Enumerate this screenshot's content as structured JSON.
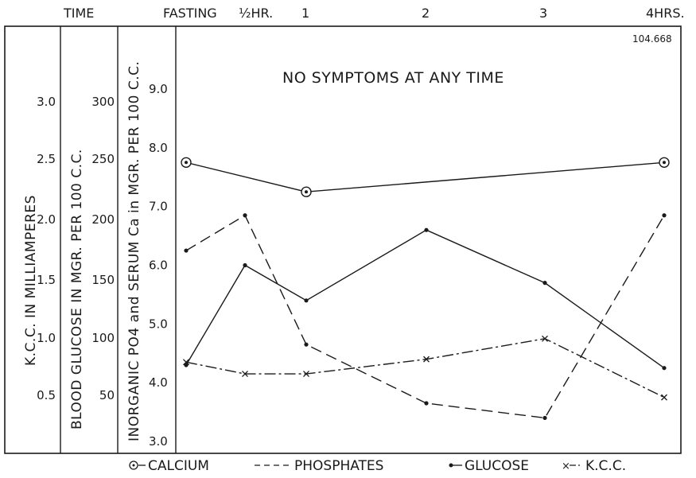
{
  "chart_data": {
    "type": "line",
    "title": "NO SYMPTOMS AT ANY TIME",
    "chart_id": "104.668",
    "x_header": "TIME",
    "x_ticks": [
      "FASTING",
      "½HR.",
      "1",
      "2",
      "3",
      "4HRS."
    ],
    "x_values": [
      0,
      0.5,
      1,
      2,
      3,
      4
    ],
    "axes": [
      {
        "label": "K.C.C. IN MILLIAMPERES",
        "ticks": [
          "0.5",
          "1.0",
          "1.5",
          "2.0",
          "2.5",
          "3.0"
        ],
        "range": [
          0.5,
          3.0
        ]
      },
      {
        "label": "BLOOD GLUCOSE IN MGR. PER 100 C.C.",
        "ticks": [
          "50",
          "100",
          "150",
          "200",
          "250",
          "300"
        ],
        "range": [
          50,
          300
        ]
      },
      {
        "label": "INORGANIC PO4 and SERUM Ca in MGR. PER 100 C.C.",
        "ticks": [
          "3.0",
          "4.0",
          "5.0",
          "6.0",
          "7.0",
          "8.0",
          "9.0"
        ],
        "range": [
          3.0,
          9.0
        ]
      }
    ],
    "legend_position": "bottom",
    "series": [
      {
        "name": "CALCIUM",
        "marker": "circle-dot",
        "style": "solid",
        "x": [
          0,
          1,
          4
        ],
        "y": [
          7.75,
          7.25,
          7.75
        ]
      },
      {
        "name": "PHOSPHATES",
        "marker": "dot",
        "style": "dashed",
        "x": [
          0,
          0.5,
          1,
          2,
          3,
          4
        ],
        "y": [
          6.25,
          6.85,
          4.65,
          3.65,
          3.4,
          6.85
        ]
      },
      {
        "name": "GLUCOSE",
        "marker": "dot",
        "style": "solid",
        "x": [
          0,
          0.5,
          1,
          2,
          3,
          4
        ],
        "y": [
          4.3,
          6.0,
          5.4,
          6.6,
          5.7,
          4.25
        ]
      },
      {
        "name": "K.C.C.",
        "marker": "x",
        "style": "dash-dot",
        "x": [
          0,
          0.5,
          1,
          2,
          3,
          4
        ],
        "y": [
          4.35,
          4.15,
          4.15,
          4.4,
          4.75,
          3.75
        ]
      }
    ]
  }
}
